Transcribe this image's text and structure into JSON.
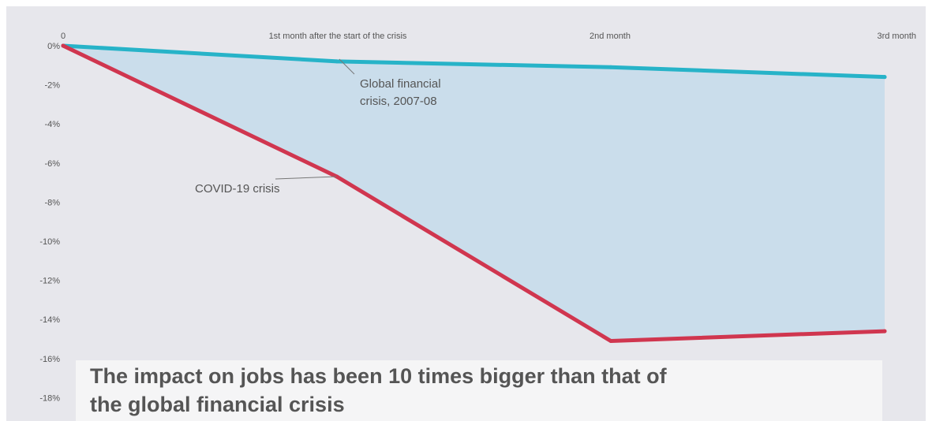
{
  "chart_data": {
    "type": "line",
    "title": "The impact on jobs has been 10 times bigger than that of the global financial crisis",
    "x": [
      "0",
      "1st month after the start of the crisis",
      "2nd month",
      "3rd month"
    ],
    "ylim": [
      -18,
      0
    ],
    "ytick_labels": [
      "0%",
      "-2%",
      "-4%",
      "-6%",
      "-8%",
      "-10%",
      "-12%",
      "-14%",
      "-16%",
      "-18%"
    ],
    "series": [
      {
        "name": "Global financial crisis, 2007-08",
        "color": "#27b3c8",
        "values": [
          0,
          -0.8,
          -1.1,
          -1.6
        ]
      },
      {
        "name": "COVID-19 crisis",
        "color": "#d0364f",
        "values": [
          0,
          -6.7,
          -15.1,
          -14.6
        ]
      }
    ],
    "annotations": [
      {
        "lines": [
          "Global financial",
          "crisis, 2007-08"
        ],
        "series_index": 0
      },
      {
        "lines": [
          "COVID-19 crisis"
        ],
        "series_index": 1
      }
    ],
    "fill_between_color": "#c8dceb",
    "grid": false
  }
}
